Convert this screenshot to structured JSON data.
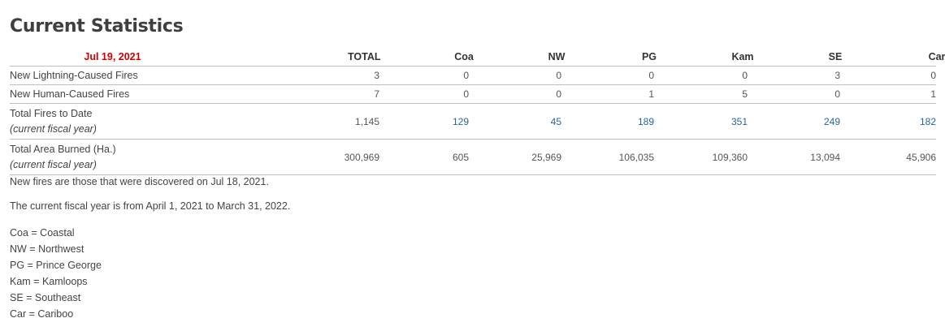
{
  "title": "Current Statistics",
  "table": {
    "date": "Jul 19, 2021",
    "columns": [
      "TOTAL",
      "Coa",
      "NW",
      "PG",
      "Kam",
      "SE",
      "Car"
    ],
    "rows": [
      {
        "label": "New Lightning-Caused Fires",
        "sub": "",
        "values": [
          "3",
          "0",
          "0",
          "0",
          "0",
          "3",
          "0"
        ]
      },
      {
        "label": "New Human-Caused Fires",
        "sub": "",
        "values": [
          "7",
          "0",
          "0",
          "1",
          "5",
          "0",
          "1"
        ]
      },
      {
        "label": "Total Fires to Date",
        "sub": "(current fiscal year)",
        "values": [
          "1,145",
          "129",
          "45",
          "189",
          "351",
          "249",
          "182"
        ]
      },
      {
        "label": "Total Area Burned (Ha.)",
        "sub": "(current fiscal year)",
        "values": [
          "300,969",
          "605",
          "25,969",
          "106,035",
          "109,360",
          "13,094",
          "45,906"
        ]
      }
    ]
  },
  "notes": {
    "new_fires": "New fires are those that were discovered on Jul 18, 2021.",
    "fiscal_year": "The current fiscal year is from April 1, 2021 to March 31, 2022."
  },
  "legend": [
    "Coa = Coastal",
    "NW = Northwest",
    "PG = Prince George",
    "Kam = Kamloops",
    "SE = Southeast",
    "Car = Cariboo"
  ],
  "colors": {
    "date": "#d00000",
    "link": "#2a6496",
    "text": "#444444"
  }
}
